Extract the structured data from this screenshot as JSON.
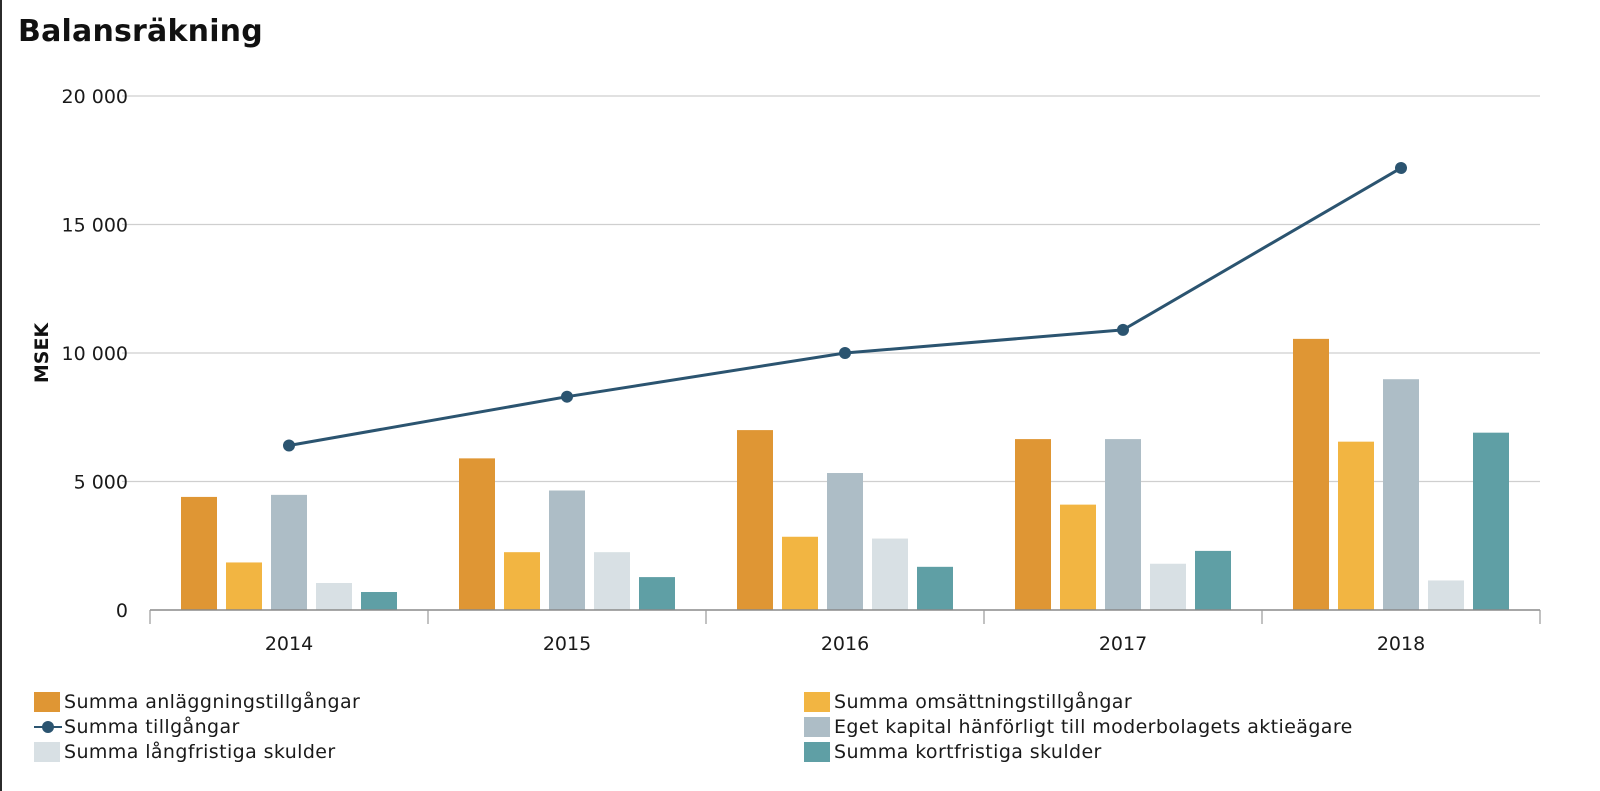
{
  "chart_data": {
    "type": "bar",
    "title": "Balansräkning",
    "ylabel": "MSEK",
    "ylim": [
      0,
      20000
    ],
    "yticks": [
      0,
      5000,
      10000,
      15000,
      20000
    ],
    "ytick_labels": [
      "0",
      "5 000",
      "10 000",
      "15 000",
      "20 000"
    ],
    "categories": [
      "2014",
      "2015",
      "2016",
      "2017",
      "2018"
    ],
    "grid": true,
    "legend_position": "bottom",
    "bar_series": [
      {
        "name": "Summa anläggningstillgångar",
        "color": "#df9634",
        "values": [
          4400,
          5900,
          7000,
          6650,
          10550
        ]
      },
      {
        "name": "Summa omsättningstillgångar",
        "color": "#f2b542",
        "values": [
          1850,
          2250,
          2850,
          4100,
          6550
        ]
      },
      {
        "name": "Eget kapital hänförligt till moderbolagets aktieägare",
        "color": "#adbdc6",
        "values": [
          4480,
          4650,
          5330,
          6650,
          8980
        ]
      },
      {
        "name": "Summa långfristiga skulder",
        "color": "#d8e0e4",
        "values": [
          1050,
          2250,
          2780,
          1800,
          1150
        ]
      },
      {
        "name": "Summa kortfristiga skulder",
        "color": "#5f9fa5",
        "values": [
          700,
          1280,
          1680,
          2300,
          6900
        ]
      }
    ],
    "line_series": [
      {
        "name": "Summa tillgångar",
        "color": "#2b5470",
        "values": [
          6400,
          8300,
          10000,
          10900,
          17200
        ]
      }
    ]
  },
  "legend": [
    {
      "label": "Summa anläggningstillgångar",
      "kind": "bar",
      "color": "#df9634"
    },
    {
      "label": "Summa omsättningstillgångar",
      "kind": "bar",
      "color": "#f2b542"
    },
    {
      "label": "Summa tillgångar",
      "kind": "line",
      "color": "#2b5470"
    },
    {
      "label": "Eget kapital hänförligt till moderbolagets aktieägare",
      "kind": "bar",
      "color": "#adbdc6"
    },
    {
      "label": "Summa långfristiga skulder",
      "kind": "bar",
      "color": "#d8e0e4"
    },
    {
      "label": "Summa kortfristiga skulder",
      "kind": "bar",
      "color": "#5f9fa5"
    }
  ]
}
